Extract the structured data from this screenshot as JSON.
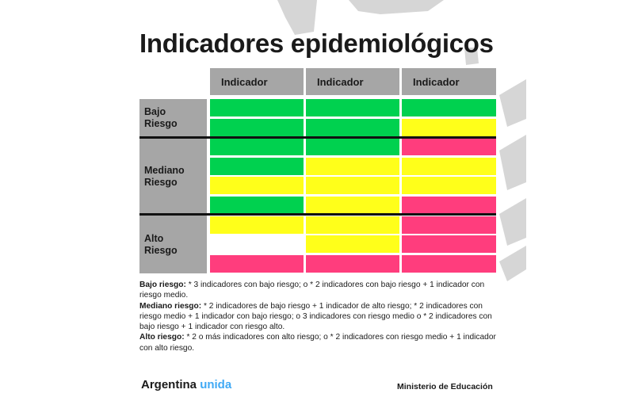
{
  "title": "Indicadores epidemiológicos",
  "colors": {
    "header_bg": "#a6a6a6",
    "green": "#00d14f",
    "yellow": "#ffff1a",
    "pink": "#ff3d7d",
    "white": "#ffffff",
    "brand_accent": "#3fa9f5"
  },
  "table": {
    "headers": [
      "Indicador",
      "Indicador",
      "Indicador"
    ],
    "groups": [
      {
        "label_line1": "Bajo",
        "label_line2": "Riesgo"
      },
      {
        "label_line1": "Mediano",
        "label_line2": "Riesgo"
      },
      {
        "label_line1": "Alto",
        "label_line2": "Riesgo"
      }
    ],
    "rows": [
      [
        "green",
        "green",
        "green"
      ],
      [
        "green",
        "green",
        "yellow"
      ],
      [
        "green",
        "green",
        "pink"
      ],
      [
        "green",
        "yellow",
        "yellow"
      ],
      [
        "yellow",
        "yellow",
        "yellow"
      ],
      [
        "green",
        "yellow",
        "pink"
      ],
      [
        "yellow",
        "yellow",
        "pink"
      ],
      [
        "white",
        "yellow",
        "pink"
      ],
      [
        "pink",
        "pink",
        "pink"
      ]
    ]
  },
  "legend": {
    "bajo_label": "Bajo riesgo:",
    "bajo_text": " * 3 indicadores con bajo riesgo; o * 2 indicadores con bajo riesgo + 1 indicador con riesgo medio.",
    "mediano_label": "Mediano riesgo:",
    "mediano_text": " * 2 indicadores de bajo riesgo + 1 indicador de alto riesgo; * 2 indicadores con riesgo medio + 1 indicador con bajo riesgo; o 3 indicadores con riesgo medio o * 2 indicadores con bajo riesgo + 1 indicador con riesgo alto.",
    "alto_label": "Alto riesgo:",
    "alto_text": " * 2 o más indicadores con alto riesgo; o * 2 indicadores con riesgo medio + 1 indicador con alto riesgo."
  },
  "footer": {
    "brand_part1": "Argentina",
    "brand_part2": "unida",
    "ministry": "Ministerio de Educación"
  }
}
